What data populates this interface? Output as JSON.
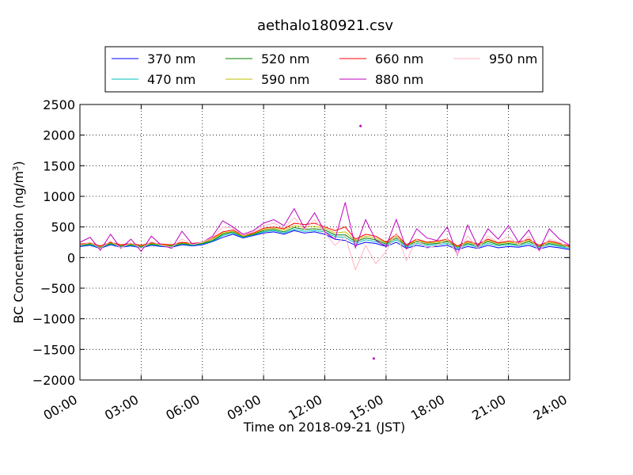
{
  "chart_data": {
    "type": "line",
    "title": "aethalo180921.csv",
    "xlabel": "Time on 2018-09-21 (JST)",
    "ylabel_main": "BC Concentration (ng/m",
    "ylabel_sup": "3",
    "ylabel_close": ")",
    "x_unit": "hour",
    "xlim": [
      0,
      24
    ],
    "ylim": [
      -2000,
      2500
    ],
    "x_ticks": [
      0,
      3,
      6,
      9,
      12,
      15,
      18,
      21,
      24
    ],
    "x_tick_labels": [
      "00:00",
      "03:00",
      "06:00",
      "09:00",
      "12:00",
      "15:00",
      "18:00",
      "21:00",
      "24:00"
    ],
    "y_ticks": [
      -2000,
      -1500,
      -1000,
      -500,
      0,
      500,
      1000,
      1500,
      2000,
      2500
    ],
    "y_tick_labels": [
      "−2000",
      "−1500",
      "−1000",
      "−500",
      "0",
      "500",
      "1000",
      "1500",
      "2000",
      "2500"
    ],
    "grid": true,
    "legend_position": "top-center",
    "x": [
      0.0,
      0.5,
      1.0,
      1.5,
      2.0,
      2.5,
      3.0,
      3.5,
      4.0,
      4.5,
      5.0,
      5.5,
      6.0,
      6.5,
      7.0,
      7.5,
      8.0,
      8.5,
      9.0,
      9.5,
      10.0,
      10.5,
      11.0,
      11.5,
      12.0,
      12.5,
      13.0,
      13.5,
      14.0,
      14.5,
      15.0,
      15.5,
      16.0,
      16.5,
      17.0,
      17.5,
      18.0,
      18.5,
      19.0,
      19.5,
      20.0,
      20.5,
      21.0,
      21.5,
      22.0,
      22.5,
      23.0,
      23.5,
      24.0
    ],
    "series": [
      {
        "name": "370 nm",
        "color": "#0000ff",
        "values": [
          180,
          200,
          150,
          210,
          170,
          190,
          160,
          200,
          180,
          170,
          210,
          190,
          210,
          260,
          330,
          380,
          320,
          360,
          400,
          420,
          380,
          440,
          400,
          420,
          380,
          300,
          280,
          200,
          250,
          230,
          180,
          250,
          150,
          200,
          170,
          180,
          200,
          130,
          180,
          150,
          200,
          160,
          180,
          170,
          200,
          140,
          180,
          160,
          130
        ]
      },
      {
        "name": "470 nm",
        "color": "#00bfbf",
        "values": [
          190,
          210,
          160,
          220,
          180,
          200,
          170,
          210,
          190,
          180,
          220,
          200,
          220,
          270,
          360,
          400,
          330,
          370,
          420,
          440,
          400,
          460,
          430,
          440,
          420,
          340,
          330,
          230,
          290,
          260,
          200,
          290,
          170,
          230,
          200,
          210,
          230,
          150,
          210,
          170,
          230,
          190,
          210,
          190,
          230,
          160,
          210,
          180,
          150
        ]
      },
      {
        "name": "520 nm",
        "color": "#008000",
        "values": [
          200,
          220,
          170,
          230,
          190,
          210,
          180,
          220,
          200,
          190,
          230,
          210,
          230,
          280,
          380,
          420,
          340,
          380,
          440,
          460,
          420,
          490,
          460,
          470,
          450,
          370,
          370,
          260,
          320,
          290,
          220,
          320,
          190,
          260,
          220,
          230,
          260,
          170,
          230,
          190,
          260,
          210,
          230,
          210,
          260,
          180,
          230,
          200,
          170
        ]
      },
      {
        "name": "590 nm",
        "color": "#bfbf00",
        "values": [
          210,
          230,
          180,
          240,
          200,
          220,
          190,
          230,
          210,
          200,
          240,
          220,
          240,
          300,
          400,
          430,
          350,
          390,
          460,
          480,
          450,
          520,
          500,
          510,
          480,
          400,
          420,
          280,
          350,
          320,
          240,
          350,
          200,
          280,
          240,
          250,
          280,
          180,
          250,
          210,
          280,
          230,
          250,
          230,
          280,
          190,
          250,
          220,
          180
        ]
      },
      {
        "name": "660 nm",
        "color": "#ff0000",
        "values": [
          220,
          240,
          190,
          250,
          210,
          230,
          200,
          240,
          220,
          210,
          250,
          230,
          250,
          320,
          420,
          450,
          360,
          400,
          480,
          500,
          470,
          560,
          540,
          560,
          500,
          440,
          500,
          300,
          380,
          350,
          250,
          380,
          210,
          300,
          250,
          270,
          300,
          190,
          270,
          220,
          300,
          240,
          270,
          250,
          300,
          200,
          270,
          230,
          190
        ]
      },
      {
        "name": "880 nm",
        "color": "#bf00bf",
        "values": [
          250,
          330,
          120,
          380,
          150,
          300,
          100,
          350,
          200,
          150,
          430,
          220,
          250,
          350,
          600,
          500,
          380,
          440,
          560,
          620,
          520,
          800,
          480,
          730,
          420,
          300,
          900,
          160,
          620,
          280,
          180,
          620,
          140,
          470,
          320,
          280,
          500,
          40,
          530,
          180,
          470,
          300,
          520,
          250,
          450,
          120,
          470,
          300,
          200
        ]
      },
      {
        "name": "950 nm",
        "color": "#ffb6c1",
        "values": [
          200,
          250,
          150,
          270,
          160,
          240,
          150,
          260,
          200,
          170,
          300,
          210,
          250,
          330,
          500,
          480,
          360,
          420,
          520,
          560,
          480,
          650,
          460,
          620,
          400,
          200,
          350,
          -200,
          200,
          -100,
          100,
          400,
          -50,
          300,
          150,
          200,
          300,
          50,
          350,
          150,
          350,
          250,
          350,
          200,
          350,
          100,
          300,
          250,
          150
        ]
      }
    ],
    "annotations": [
      {
        "series": "880 nm",
        "x": 13.75,
        "value": 2150
      },
      {
        "series": "880 nm",
        "x": 14.4,
        "value": -1650
      }
    ]
  }
}
